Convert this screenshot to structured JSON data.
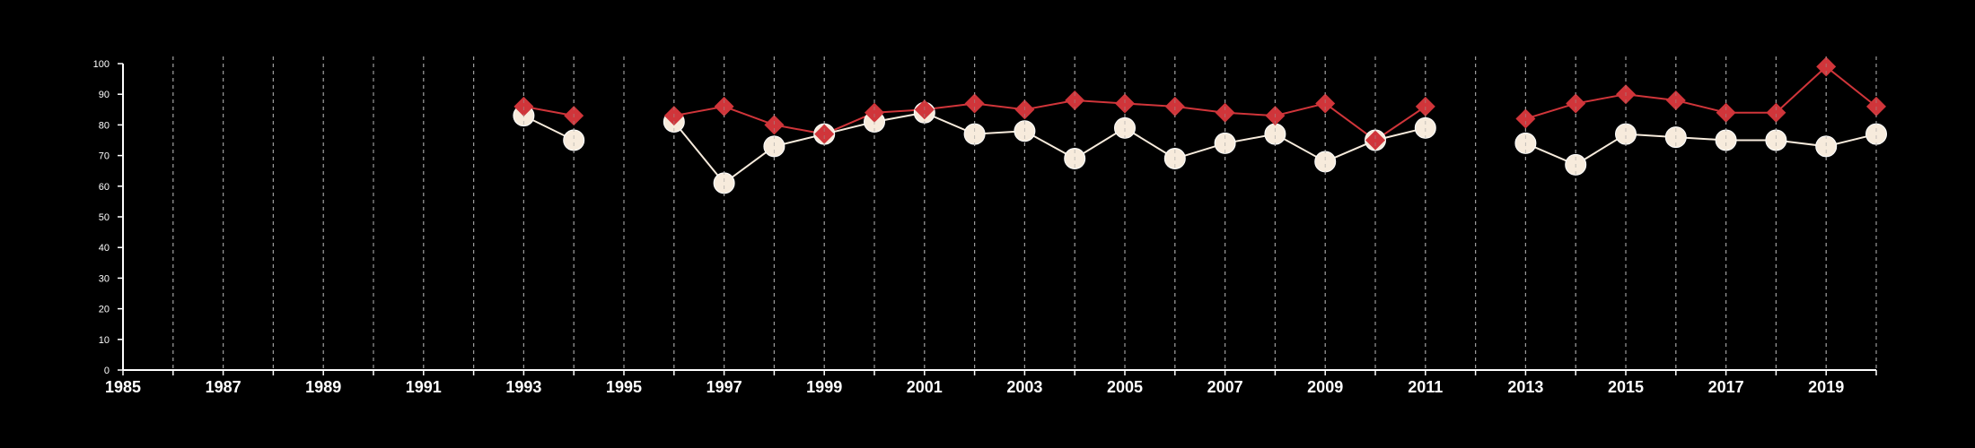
{
  "chart_data": {
    "type": "line",
    "title": "",
    "xlabel": "",
    "ylabel": "",
    "xlim": [
      1985,
      2020
    ],
    "ylim": [
      0,
      100
    ],
    "x_ticks_labeled": [
      1985,
      1987,
      1989,
      1991,
      1993,
      1995,
      1997,
      1999,
      2001,
      2003,
      2005,
      2007,
      2009,
      2011,
      2013,
      2015,
      2017,
      2019
    ],
    "y_ticks": [
      0,
      10,
      20,
      30,
      40,
      50,
      60,
      70,
      80,
      90,
      100
    ],
    "grid": "vertical dashed lines at every year",
    "legend": "none",
    "series": [
      {
        "color": "#d0353a",
        "marker": "diamond",
        "x": [
          1993,
          1994,
          1996,
          1997,
          1998,
          1999,
          2000,
          2001,
          2002,
          2003,
          2004,
          2005,
          2006,
          2007,
          2008,
          2009,
          2010,
          2011,
          2013,
          2014,
          2015,
          2016,
          2017,
          2018,
          2019,
          2020
        ],
        "values": [
          86,
          83,
          83,
          86,
          80,
          77,
          84,
          85,
          87,
          85,
          88,
          87,
          86,
          84,
          83,
          87,
          75,
          86,
          82,
          87,
          90,
          88,
          84,
          84,
          99,
          86
        ]
      },
      {
        "color": "#f7ebdc",
        "marker": "circle",
        "x": [
          1993,
          1994,
          1996,
          1997,
          1998,
          1999,
          2000,
          2001,
          2002,
          2003,
          2004,
          2005,
          2006,
          2007,
          2008,
          2009,
          2010,
          2011,
          2013,
          2014,
          2015,
          2016,
          2017,
          2018,
          2019,
          2020
        ],
        "values": [
          83,
          75,
          81,
          61,
          73,
          77,
          81,
          84,
          77,
          78,
          69,
          79,
          69,
          74,
          77,
          68,
          75,
          79,
          74,
          67,
          77,
          76,
          75,
          75,
          73,
          77
        ]
      }
    ]
  }
}
